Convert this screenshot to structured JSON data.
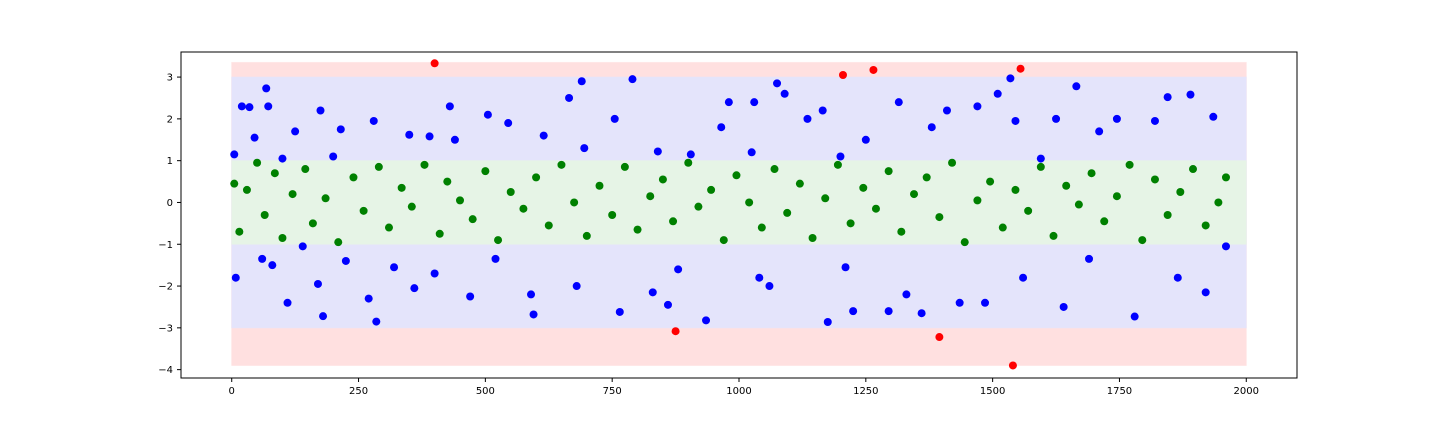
{
  "chart_data": {
    "type": "scatter",
    "title": "",
    "xlabel": "",
    "ylabel": "",
    "xlim": [
      -100,
      2100
    ],
    "ylim": [
      -4.2,
      3.6
    ],
    "xticks": [
      0,
      250,
      500,
      750,
      1000,
      1250,
      1500,
      1750,
      2000
    ],
    "yticks": [
      -4,
      -3,
      -2,
      -1,
      0,
      1,
      2,
      3
    ],
    "grid": false,
    "bands": [
      {
        "lower": -3.9,
        "upper": 3.35,
        "color": "#ffe0e0"
      },
      {
        "lower": -3.0,
        "upper": 3.0,
        "color": "#e4e4fb"
      },
      {
        "lower": -1.0,
        "upper": 1.0,
        "color": "#e6f4e6"
      }
    ],
    "series": [
      {
        "color": "#ff0000",
        "points": [
          [
            400,
            3.33
          ],
          [
            875,
            -3.08
          ],
          [
            1205,
            3.05
          ],
          [
            1265,
            3.17
          ],
          [
            1395,
            -3.22
          ],
          [
            1540,
            -3.9
          ],
          [
            1555,
            3.2
          ]
        ]
      },
      {
        "color": "#0000ff",
        "points": [
          [
            5,
            1.15
          ],
          [
            8,
            -1.8
          ],
          [
            20,
            2.3
          ],
          [
            35,
            2.28
          ],
          [
            45,
            1.55
          ],
          [
            60,
            -1.35
          ],
          [
            68,
            2.73
          ],
          [
            72,
            2.3
          ],
          [
            80,
            -1.5
          ],
          [
            100,
            1.05
          ],
          [
            110,
            -2.4
          ],
          [
            125,
            1.7
          ],
          [
            140,
            -1.05
          ],
          [
            170,
            -1.95
          ],
          [
            175,
            2.2
          ],
          [
            180,
            -2.72
          ],
          [
            200,
            1.1
          ],
          [
            215,
            1.75
          ],
          [
            225,
            -1.4
          ],
          [
            270,
            -2.3
          ],
          [
            280,
            1.95
          ],
          [
            285,
            -2.85
          ],
          [
            320,
            -1.55
          ],
          [
            350,
            1.62
          ],
          [
            360,
            -2.05
          ],
          [
            390,
            1.58
          ],
          [
            400,
            -1.7
          ],
          [
            430,
            2.3
          ],
          [
            440,
            1.5
          ],
          [
            470,
            -2.25
          ],
          [
            505,
            2.1
          ],
          [
            520,
            -1.35
          ],
          [
            545,
            1.9
          ],
          [
            590,
            -2.2
          ],
          [
            595,
            -2.68
          ],
          [
            615,
            1.6
          ],
          [
            665,
            2.5
          ],
          [
            680,
            -2.0
          ],
          [
            690,
            2.9
          ],
          [
            695,
            1.3
          ],
          [
            755,
            2.0
          ],
          [
            765,
            -2.62
          ],
          [
            790,
            2.95
          ],
          [
            830,
            -2.15
          ],
          [
            840,
            1.22
          ],
          [
            860,
            -2.45
          ],
          [
            880,
            -1.6
          ],
          [
            905,
            1.15
          ],
          [
            935,
            -2.82
          ],
          [
            965,
            1.8
          ],
          [
            980,
            2.4
          ],
          [
            1025,
            1.2
          ],
          [
            1030,
            2.4
          ],
          [
            1040,
            -1.8
          ],
          [
            1060,
            -2.0
          ],
          [
            1075,
            2.85
          ],
          [
            1090,
            2.6
          ],
          [
            1135,
            2.0
          ],
          [
            1165,
            2.2
          ],
          [
            1175,
            -2.86
          ],
          [
            1200,
            1.1
          ],
          [
            1210,
            -1.55
          ],
          [
            1225,
            -2.6
          ],
          [
            1250,
            1.5
          ],
          [
            1295,
            -2.6
          ],
          [
            1315,
            2.4
          ],
          [
            1330,
            -2.2
          ],
          [
            1360,
            -2.65
          ],
          [
            1380,
            1.8
          ],
          [
            1410,
            2.2
          ],
          [
            1435,
            -2.4
          ],
          [
            1470,
            2.3
          ],
          [
            1485,
            -2.4
          ],
          [
            1510,
            2.6
          ],
          [
            1535,
            2.97
          ],
          [
            1545,
            1.95
          ],
          [
            1560,
            -1.8
          ],
          [
            1595,
            1.05
          ],
          [
            1625,
            2.0
          ],
          [
            1640,
            -2.5
          ],
          [
            1665,
            2.78
          ],
          [
            1690,
            -1.35
          ],
          [
            1710,
            1.7
          ],
          [
            1745,
            2.0
          ],
          [
            1780,
            -2.73
          ],
          [
            1820,
            1.95
          ],
          [
            1845,
            2.52
          ],
          [
            1865,
            -1.8
          ],
          [
            1890,
            2.58
          ],
          [
            1920,
            -2.15
          ],
          [
            1935,
            2.05
          ],
          [
            1960,
            -1.05
          ]
        ]
      },
      {
        "color": "#008000",
        "points": [
          [
            5,
            0.45
          ],
          [
            15,
            -0.7
          ],
          [
            30,
            0.3
          ],
          [
            50,
            0.95
          ],
          [
            65,
            -0.3
          ],
          [
            85,
            0.7
          ],
          [
            100,
            -0.85
          ],
          [
            120,
            0.2
          ],
          [
            145,
            0.8
          ],
          [
            160,
            -0.5
          ],
          [
            185,
            0.1
          ],
          [
            210,
            -0.95
          ],
          [
            240,
            0.6
          ],
          [
            260,
            -0.2
          ],
          [
            290,
            0.85
          ],
          [
            310,
            -0.6
          ],
          [
            335,
            0.35
          ],
          [
            355,
            -0.1
          ],
          [
            380,
            0.9
          ],
          [
            410,
            -0.75
          ],
          [
            425,
            0.5
          ],
          [
            450,
            0.05
          ],
          [
            475,
            -0.4
          ],
          [
            500,
            0.75
          ],
          [
            525,
            -0.9
          ],
          [
            550,
            0.25
          ],
          [
            575,
            -0.15
          ],
          [
            600,
            0.6
          ],
          [
            625,
            -0.55
          ],
          [
            650,
            0.9
          ],
          [
            675,
            0.0
          ],
          [
            700,
            -0.8
          ],
          [
            725,
            0.4
          ],
          [
            750,
            -0.3
          ],
          [
            775,
            0.85
          ],
          [
            800,
            -0.65
          ],
          [
            825,
            0.15
          ],
          [
            850,
            0.55
          ],
          [
            870,
            -0.45
          ],
          [
            900,
            0.95
          ],
          [
            920,
            -0.1
          ],
          [
            945,
            0.3
          ],
          [
            970,
            -0.9
          ],
          [
            995,
            0.65
          ],
          [
            1020,
            0.0
          ],
          [
            1045,
            -0.6
          ],
          [
            1070,
            0.8
          ],
          [
            1095,
            -0.25
          ],
          [
            1120,
            0.45
          ],
          [
            1145,
            -0.85
          ],
          [
            1170,
            0.1
          ],
          [
            1195,
            0.9
          ],
          [
            1220,
            -0.5
          ],
          [
            1245,
            0.35
          ],
          [
            1270,
            -0.15
          ],
          [
            1295,
            0.75
          ],
          [
            1320,
            -0.7
          ],
          [
            1345,
            0.2
          ],
          [
            1370,
            0.6
          ],
          [
            1395,
            -0.35
          ],
          [
            1420,
            0.95
          ],
          [
            1445,
            -0.95
          ],
          [
            1470,
            0.05
          ],
          [
            1495,
            0.5
          ],
          [
            1520,
            -0.6
          ],
          [
            1545,
            0.3
          ],
          [
            1570,
            -0.2
          ],
          [
            1595,
            0.85
          ],
          [
            1620,
            -0.8
          ],
          [
            1645,
            0.4
          ],
          [
            1670,
            -0.05
          ],
          [
            1695,
            0.7
          ],
          [
            1720,
            -0.45
          ],
          [
            1745,
            0.15
          ],
          [
            1770,
            0.9
          ],
          [
            1795,
            -0.9
          ],
          [
            1820,
            0.55
          ],
          [
            1845,
            -0.3
          ],
          [
            1870,
            0.25
          ],
          [
            1895,
            0.8
          ],
          [
            1920,
            -0.55
          ],
          [
            1945,
            0.0
          ],
          [
            1960,
            0.6
          ]
        ]
      }
    ]
  }
}
